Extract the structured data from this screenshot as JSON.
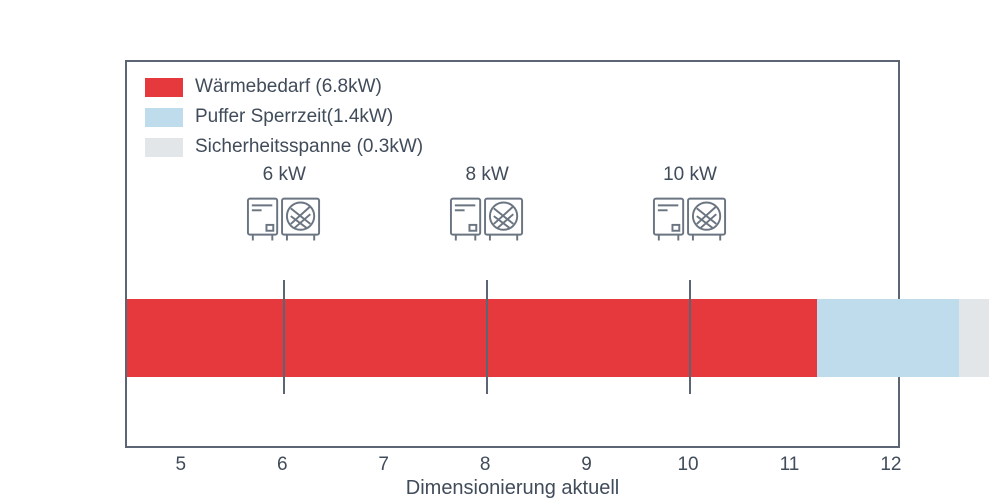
{
  "chart_data": {
    "type": "bar",
    "orientation": "horizontal-stacked",
    "title": "",
    "xlabel": "Dimensionierung aktuell",
    "ylabel": "",
    "xlim": [
      4.45,
      12.05
    ],
    "x_ticks": [
      5,
      6,
      7,
      8,
      9,
      10,
      11,
      12
    ],
    "grid": false,
    "legend_position": "upper-left",
    "axis_color": "#5b6573",
    "text_color": "#414c5a",
    "bar_start": 4.45,
    "segments": [
      {
        "name": "waermebedarf",
        "label": "Wärmebedarf (6.8kW)",
        "value": 6.8,
        "color": "#e6393d"
      },
      {
        "name": "puffer-sperrzeit",
        "label": "Puffer Sperrzeit(1.4kW)",
        "value": 1.4,
        "color": "#bedcec"
      },
      {
        "name": "sicherheitsspanne",
        "label": "Sicherheitsspanne (0.3kW)",
        "value": 0.3,
        "color": "#e3e6e9"
      }
    ],
    "markers": [
      {
        "value": 6,
        "label": "6 kW"
      },
      {
        "value": 8,
        "label": "8 kW"
      },
      {
        "value": 10,
        "label": "10 kW"
      }
    ]
  }
}
